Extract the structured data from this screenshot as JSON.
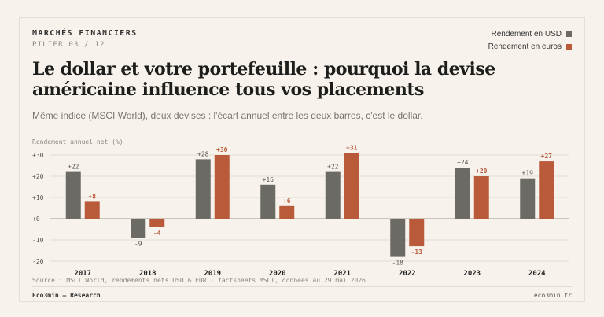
{
  "header": {
    "kicker": "MARCHÉS FINANCIERS",
    "pillar": "PILIER 03 / 12"
  },
  "title": "Le dollar et votre portefeuille : pourquoi la devise américaine influence tous vos placements",
  "subtitle": "Même indice (MSCI World), deux devises : l'écart annuel entre les deux barres, c'est le dollar.",
  "legend": [
    {
      "label": "Rendement en USD",
      "color": "#6b6a64"
    },
    {
      "label": "Rendement en euros",
      "color": "#b95a3a"
    }
  ],
  "chart_data": {
    "type": "bar",
    "ylabel": "Rendement annuel net (%)",
    "categories": [
      "2017",
      "2018",
      "2019",
      "2020",
      "2021",
      "2022",
      "2023",
      "2024"
    ],
    "series": [
      {
        "name": "Rendement en USD",
        "values": [
          22,
          -9,
          28,
          16,
          22,
          -18,
          24,
          19
        ],
        "color": "#6b6a64"
      },
      {
        "name": "Rendement en euros",
        "values": [
          8,
          -4,
          30,
          6,
          31,
          -13,
          20,
          27
        ],
        "color": "#b95a3a"
      }
    ],
    "yticks": [
      30,
      20,
      10,
      0,
      -10,
      -20
    ],
    "ytick_labels": [
      "+30",
      "+20",
      "+10",
      "+0",
      "-10",
      "-20"
    ],
    "ylim": [
      -20,
      30
    ],
    "grid": true,
    "legend_position": "top-right"
  },
  "footer": {
    "source": "Source : MSCI World, rendements nets USD & EUR · factsheets MSCI, données au 29 mai 2026",
    "brand": "Eco3min — Research",
    "site": "eco3min.fr"
  }
}
